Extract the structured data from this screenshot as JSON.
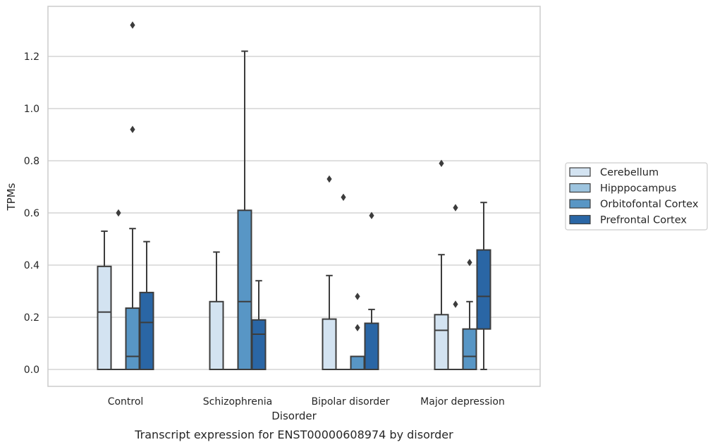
{
  "chart_data": {
    "type": "box",
    "title": "",
    "xlabel": "Disorder",
    "ylabel": "TPMs",
    "caption": "Transcript expression for ENST00000608974 by disorder",
    "ylim": [
      -0.065,
      1.39
    ],
    "yticks": [
      0.0,
      0.2,
      0.4,
      0.6,
      0.8,
      1.0,
      1.2
    ],
    "ytick_labels": [
      "0.0",
      "0.2",
      "0.4",
      "0.6",
      "0.8",
      "1.0",
      "1.2"
    ],
    "grid": "horizontal",
    "legend_position": "right",
    "categories": [
      "Control",
      "Schizophrenia",
      "Bipolar disorder",
      "Major depression"
    ],
    "series": [
      {
        "name": "Cerebellum",
        "color": "#d3e3f1",
        "boxes": [
          {
            "q1": 0,
            "median": 0.22,
            "q3": 0.395,
            "whisker_low": 0,
            "whisker_high": 0.53,
            "outliers": []
          },
          {
            "q1": 0,
            "median": 0,
            "q3": 0.26,
            "whisker_low": 0,
            "whisker_high": 0.45,
            "outliers": []
          },
          {
            "q1": 0,
            "median": 0,
            "q3": 0.193,
            "whisker_low": 0,
            "whisker_high": 0.36,
            "outliers": [
              0.73
            ]
          },
          {
            "q1": 0,
            "median": 0.15,
            "q3": 0.21,
            "whisker_low": 0,
            "whisker_high": 0.44,
            "outliers": [
              0.79
            ]
          }
        ]
      },
      {
        "name": "Hipppocampus",
        "color": "#9dc4df",
        "boxes": [
          {
            "q1": 0,
            "median": 0,
            "q3": 0,
            "whisker_low": 0,
            "whisker_high": 0,
            "outliers": [
              0.6
            ]
          },
          {
            "q1": 0,
            "median": 0,
            "q3": 0,
            "whisker_low": 0,
            "whisker_high": 0,
            "outliers": []
          },
          {
            "q1": 0,
            "median": 0,
            "q3": 0,
            "whisker_low": 0,
            "whisker_high": 0,
            "outliers": [
              0.66
            ]
          },
          {
            "q1": 0,
            "median": 0,
            "q3": 0,
            "whisker_low": 0,
            "whisker_high": 0,
            "outliers": [
              0.25,
              0.62
            ]
          }
        ]
      },
      {
        "name": "Orbitofontal Cortex",
        "color": "#5896c5",
        "boxes": [
          {
            "q1": 0,
            "median": 0.05,
            "q3": 0.235,
            "whisker_low": 0,
            "whisker_high": 0.54,
            "outliers": [
              0.92,
              1.32
            ]
          },
          {
            "q1": 0,
            "median": 0.26,
            "q3": 0.61,
            "whisker_low": 0,
            "whisker_high": 1.22,
            "outliers": []
          },
          {
            "q1": 0,
            "median": 0,
            "q3": 0.05,
            "whisker_low": 0,
            "whisker_high": 0.05,
            "outliers": [
              0.16,
              0.28
            ]
          },
          {
            "q1": 0,
            "median": 0.05,
            "q3": 0.155,
            "whisker_low": 0,
            "whisker_high": 0.26,
            "outliers": [
              0.41
            ]
          }
        ]
      },
      {
        "name": "Prefrontal Cortex",
        "color": "#2a66a5",
        "boxes": [
          {
            "q1": 0,
            "median": 0.18,
            "q3": 0.295,
            "whisker_low": 0,
            "whisker_high": 0.49,
            "outliers": []
          },
          {
            "q1": 0,
            "median": 0.135,
            "q3": 0.19,
            "whisker_low": 0,
            "whisker_high": 0.34,
            "outliers": []
          },
          {
            "q1": 0,
            "median": 0,
            "q3": 0.177,
            "whisker_low": 0,
            "whisker_high": 0.23,
            "outliers": [
              0.59
            ]
          },
          {
            "q1": 0.155,
            "median": 0.28,
            "q3": 0.458,
            "whisker_low": 0,
            "whisker_high": 0.64,
            "outliers": []
          }
        ]
      }
    ]
  }
}
